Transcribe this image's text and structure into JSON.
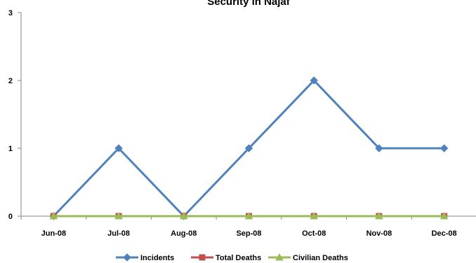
{
  "chart_data": {
    "type": "line",
    "title": "Security in Najaf",
    "categories": [
      "Jun-08",
      "Jul-08",
      "Aug-08",
      "Sep-08",
      "Oct-08",
      "Nov-08",
      "Dec-08"
    ],
    "yticks": [
      "0",
      "1",
      "2",
      "3"
    ],
    "ylim": [
      0,
      3
    ],
    "grid": false,
    "legend_position": "bottom",
    "series": [
      {
        "name": "Incidents",
        "values": [
          0,
          1,
          0,
          1,
          2,
          1,
          1
        ],
        "color": "#4F81BD",
        "marker": "diamond"
      },
      {
        "name": "Total Deaths",
        "values": [
          0,
          0,
          0,
          0,
          0,
          0,
          0
        ],
        "color": "#C0504D",
        "marker": "square"
      },
      {
        "name": "Civilian Deaths",
        "values": [
          0,
          0,
          0,
          0,
          0,
          0,
          0
        ],
        "color": "#9BBB59",
        "marker": "triangle"
      }
    ]
  }
}
